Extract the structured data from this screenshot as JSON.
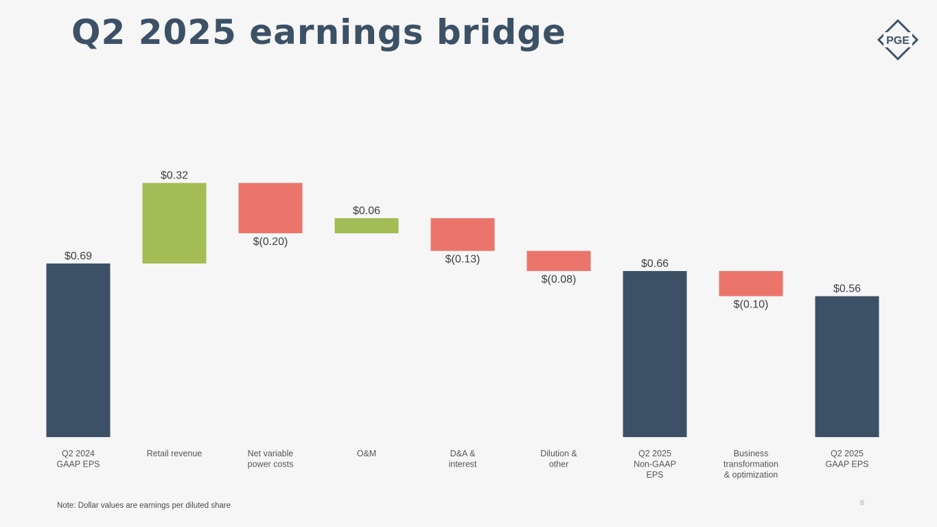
{
  "title": "Q2 2025 earnings bridge",
  "logo_text": "PGE",
  "note": "Note: Dollar values are earnings per diluted share",
  "page_number": "6",
  "colors": {
    "total": "#3d5166",
    "increase": "#a2bd55",
    "decrease": "#eb756b",
    "text": "#3d3d3d",
    "category_text": "#555555"
  },
  "chart_data": {
    "type": "waterfall",
    "title": "Q2 2025 earnings bridge",
    "ylim": [
      0,
      0.8
    ],
    "grid": false,
    "bars": [
      {
        "category": [
          "Q2 2024",
          "GAAP EPS"
        ],
        "kind": "total",
        "start": 0,
        "end": 0.69,
        "value": 0.69,
        "label": "$0.69"
      },
      {
        "category": [
          "Retail revenue"
        ],
        "kind": "increase",
        "start": 0.69,
        "end": 1.01,
        "value": 0.32,
        "label": "$0.32"
      },
      {
        "category": [
          "Net variable",
          "power costs"
        ],
        "kind": "decrease",
        "start": 1.01,
        "end": 0.81,
        "value": -0.2,
        "label": "$(0.20)"
      },
      {
        "category": [
          "O&M"
        ],
        "kind": "increase",
        "start": 0.81,
        "end": 0.87,
        "value": 0.06,
        "label": "$0.06"
      },
      {
        "category": [
          "D&A &",
          "interest"
        ],
        "kind": "decrease",
        "start": 0.87,
        "end": 0.74,
        "value": -0.13,
        "label": "$(0.13)"
      },
      {
        "category": [
          "Dilution &",
          "other"
        ],
        "kind": "decrease",
        "start": 0.74,
        "end": 0.66,
        "value": -0.08,
        "label": "$(0.08)"
      },
      {
        "category": [
          "Q2 2025",
          "Non-GAAP",
          "EPS"
        ],
        "kind": "total",
        "start": 0,
        "end": 0.66,
        "value": 0.66,
        "label": "$0.66"
      },
      {
        "category": [
          "Business",
          "transformation",
          "& optimization"
        ],
        "kind": "decrease",
        "start": 0.66,
        "end": 0.56,
        "value": -0.1,
        "label": "$(0.10)"
      },
      {
        "category": [
          "Q2 2025",
          "GAAP EPS"
        ],
        "kind": "total",
        "start": 0,
        "end": 0.56,
        "value": 0.56,
        "label": "$0.56"
      }
    ]
  }
}
